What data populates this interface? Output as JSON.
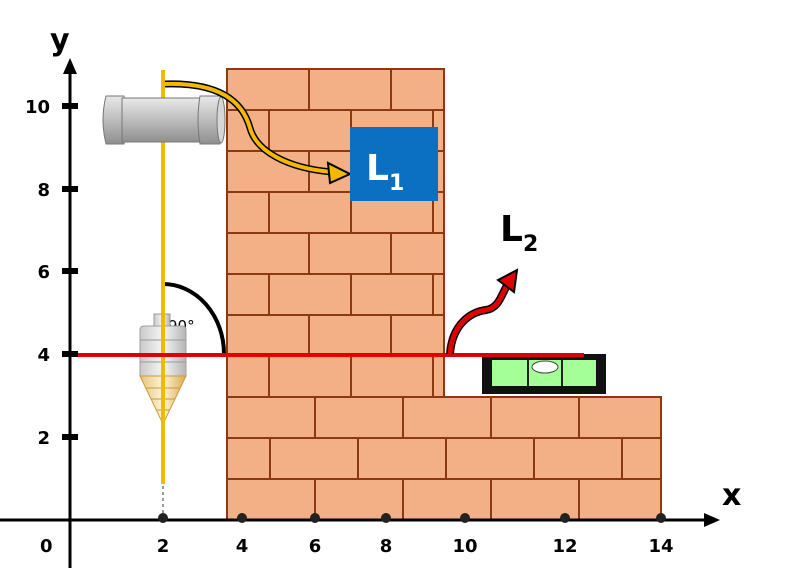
{
  "axes": {
    "x_letter": "x",
    "y_letter": "y",
    "origin_label": "0",
    "x_ticks": [
      "2",
      "4",
      "6",
      "8",
      "10",
      "12",
      "14"
    ],
    "y_ticks": [
      "2",
      "4",
      "6",
      "8",
      "10"
    ]
  },
  "labels": {
    "L1_main": "L",
    "L1_sub": "1",
    "L2_main": "L",
    "L2_sub": "2",
    "angle": "90°"
  },
  "colors": {
    "brick": "#F3AF85",
    "mortar": "#8B3A10",
    "plumb_line": "#F5B800",
    "level_line": "#E00000",
    "label_box": "#0B6FC2",
    "level_bubble": "#7CFF6A"
  },
  "icons": [
    "plumb-bob-icon",
    "spool-icon",
    "spirit-level-icon",
    "curved-arrow-icon"
  ]
}
